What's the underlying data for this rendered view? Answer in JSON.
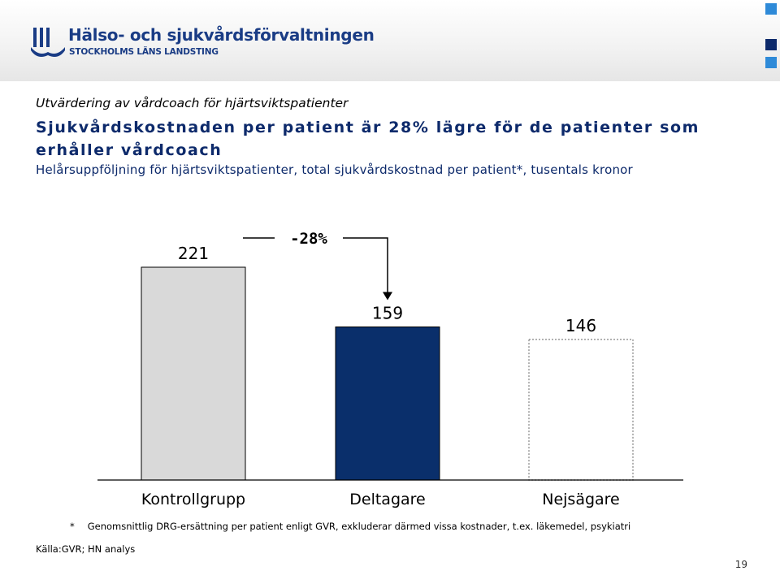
{
  "header": {
    "org_name": "Hälso- och sjukvårdsförvaltningen",
    "org_sub": "STOCKHOLMS LÄNS LANDSTING",
    "logo_icon": "sll-logo-icon",
    "accent_color": "#1a3c85",
    "decor_colors": [
      "#2e8ad8",
      "#0d2a6b"
    ]
  },
  "slide": {
    "subtitle": "Utvärdering av vårdcoach för hjärtsviktspatienter",
    "headline": "Sjukvårdskostnaden per patient är 28% lägre för de patienter som erhåller vårdcoach",
    "description": "Helårsuppföljning för hjärtsviktspatienter, total sjukvårdskostnad per patient*, tusentals kronor",
    "footnote_marker": "*",
    "footnote": "Genomsnittlig DRG-ersättning per patient enligt GVR, exkluderar därmed vissa kostnader, t.ex. läkemedel, psykiatri",
    "source": "Källa:GVR; HN analys",
    "page_number": "19"
  },
  "chart_data": {
    "type": "bar",
    "categories": [
      "Kontrollgrupp",
      "Deltagare",
      "Nejsägare"
    ],
    "values": [
      221,
      159,
      146
    ],
    "value_labels": [
      "221",
      "159",
      "146"
    ],
    "bar_colors": [
      "#d9d9d9",
      "#0a2f6b",
      "#ffffff"
    ],
    "bar_styles": [
      "solid",
      "solid",
      "dotted"
    ],
    "ylim": [
      0,
      221
    ],
    "annotation": {
      "text": "-28%",
      "from": "Kontrollgrupp",
      "to": "Deltagare"
    }
  }
}
